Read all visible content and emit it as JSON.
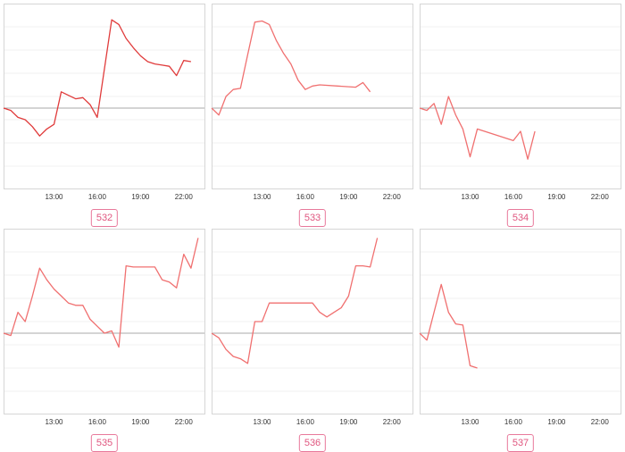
{
  "chart_data": [
    {
      "type": "line",
      "label": "532",
      "color": "#e03b3b",
      "x_ticks": [
        "13:00",
        "16:00",
        "19:00",
        "22:00"
      ],
      "xlim": [
        9.5,
        23.5
      ],
      "ylim": [
        -3.5,
        4.5
      ],
      "grid": true,
      "series": [
        {
          "x": [
            9.5,
            10,
            10.5,
            11,
            11.5,
            12,
            12.5,
            13,
            13.5,
            14,
            14.5,
            15,
            15.5,
            16,
            16.5,
            17,
            17.5,
            18,
            18.5,
            19,
            19.5,
            20,
            20.5,
            21,
            21.5,
            22,
            22.5
          ],
          "y": [
            0,
            -0.1,
            -0.4,
            -0.5,
            -0.8,
            -1.2,
            -0.9,
            -0.7,
            0.7,
            0.55,
            0.4,
            0.45,
            0.15,
            -0.4,
            1.7,
            3.8,
            3.6,
            3.0,
            2.6,
            2.25,
            2.0,
            1.9,
            1.85,
            1.8,
            1.4,
            2.05,
            2.0
          ]
        }
      ]
    },
    {
      "type": "line",
      "label": "533",
      "color": "#f07070",
      "x_ticks": [
        "13:00",
        "16:00",
        "19:00",
        "22:00"
      ],
      "xlim": [
        9.5,
        23.5
      ],
      "ylim": [
        -3.5,
        4.5
      ],
      "grid": true,
      "series": [
        {
          "x": [
            9.5,
            10,
            10.5,
            11,
            11.5,
            12,
            12.5,
            13,
            13.5,
            14,
            14.5,
            15,
            15.5,
            16,
            16.5,
            17,
            19.5,
            20,
            20.5
          ],
          "y": [
            0,
            -0.3,
            0.5,
            0.8,
            0.85,
            2.3,
            3.7,
            3.75,
            3.6,
            2.9,
            2.35,
            1.9,
            1.2,
            0.8,
            0.95,
            1.0,
            0.9,
            1.1,
            0.7
          ]
        }
      ]
    },
    {
      "type": "line",
      "label": "534",
      "color": "#f07070",
      "x_ticks": [
        "13:00",
        "16:00",
        "19:00",
        "22:00"
      ],
      "xlim": [
        9.5,
        23.5
      ],
      "ylim": [
        -3.5,
        4.5
      ],
      "grid": true,
      "series": [
        {
          "x": [
            9.5,
            10,
            10.5,
            11,
            11.5,
            12,
            12.5,
            13,
            13.5,
            16,
            16.5,
            17,
            17.5
          ],
          "y": [
            0,
            -0.1,
            0.2,
            -0.7,
            0.5,
            -0.3,
            -0.9,
            -2.1,
            -0.9,
            -1.4,
            -1.0,
            -2.2,
            -1.0
          ]
        }
      ]
    },
    {
      "type": "line",
      "label": "535",
      "color": "#f07070",
      "x_ticks": [
        "13:00",
        "16:00",
        "19:00",
        "22:00"
      ],
      "xlim": [
        9.5,
        23.5
      ],
      "ylim": [
        -3.5,
        4.5
      ],
      "grid": true,
      "series": [
        {
          "x": [
            9.5,
            10,
            10.5,
            11,
            11.5,
            12,
            12.5,
            13,
            13.5,
            14,
            14.5,
            15,
            15.5,
            16,
            16.5,
            17,
            17.5,
            18,
            18.5,
            19,
            19.5,
            20,
            20.5,
            21,
            21.5,
            22,
            22.5,
            23
          ],
          "y": [
            0,
            -0.1,
            0.9,
            0.5,
            1.6,
            2.8,
            2.3,
            1.9,
            1.6,
            1.3,
            1.2,
            1.2,
            0.6,
            0.3,
            0.0,
            0.1,
            -0.6,
            2.9,
            2.85,
            2.85,
            2.85,
            2.85,
            2.3,
            2.2,
            1.95,
            3.4,
            2.8,
            4.1
          ]
        }
      ]
    },
    {
      "type": "line",
      "label": "536",
      "color": "#f07070",
      "x_ticks": [
        "13:00",
        "16:00",
        "19:00",
        "22:00"
      ],
      "xlim": [
        9.5,
        23.5
      ],
      "ylim": [
        -3.5,
        4.5
      ],
      "grid": true,
      "series": [
        {
          "x": [
            9.5,
            10,
            10.5,
            11,
            11.5,
            12,
            12.5,
            13,
            13.5,
            14,
            14.5,
            15,
            15.5,
            16,
            16.5,
            17,
            17.5,
            18,
            18.5,
            19,
            19.5,
            20,
            20.5,
            21
          ],
          "y": [
            0,
            -0.2,
            -0.7,
            -1.0,
            -1.1,
            -1.3,
            0.5,
            0.5,
            1.3,
            1.3,
            1.3,
            1.3,
            1.3,
            1.3,
            1.3,
            0.9,
            0.7,
            0.9,
            1.1,
            1.6,
            2.9,
            2.9,
            2.85,
            4.1
          ]
        }
      ]
    },
    {
      "type": "line",
      "label": "537",
      "color": "#f07070",
      "x_ticks": [
        "13:00",
        "16:00",
        "19:00",
        "22:00"
      ],
      "xlim": [
        9.5,
        23.5
      ],
      "ylim": [
        -3.5,
        4.5
      ],
      "grid": true,
      "series": [
        {
          "x": [
            9.5,
            10,
            10.5,
            11,
            11.5,
            12,
            12.5,
            13,
            13.5
          ],
          "y": [
            0,
            -0.3,
            0.9,
            2.1,
            0.9,
            0.4,
            0.35,
            -1.4,
            -1.5
          ]
        }
      ]
    }
  ]
}
